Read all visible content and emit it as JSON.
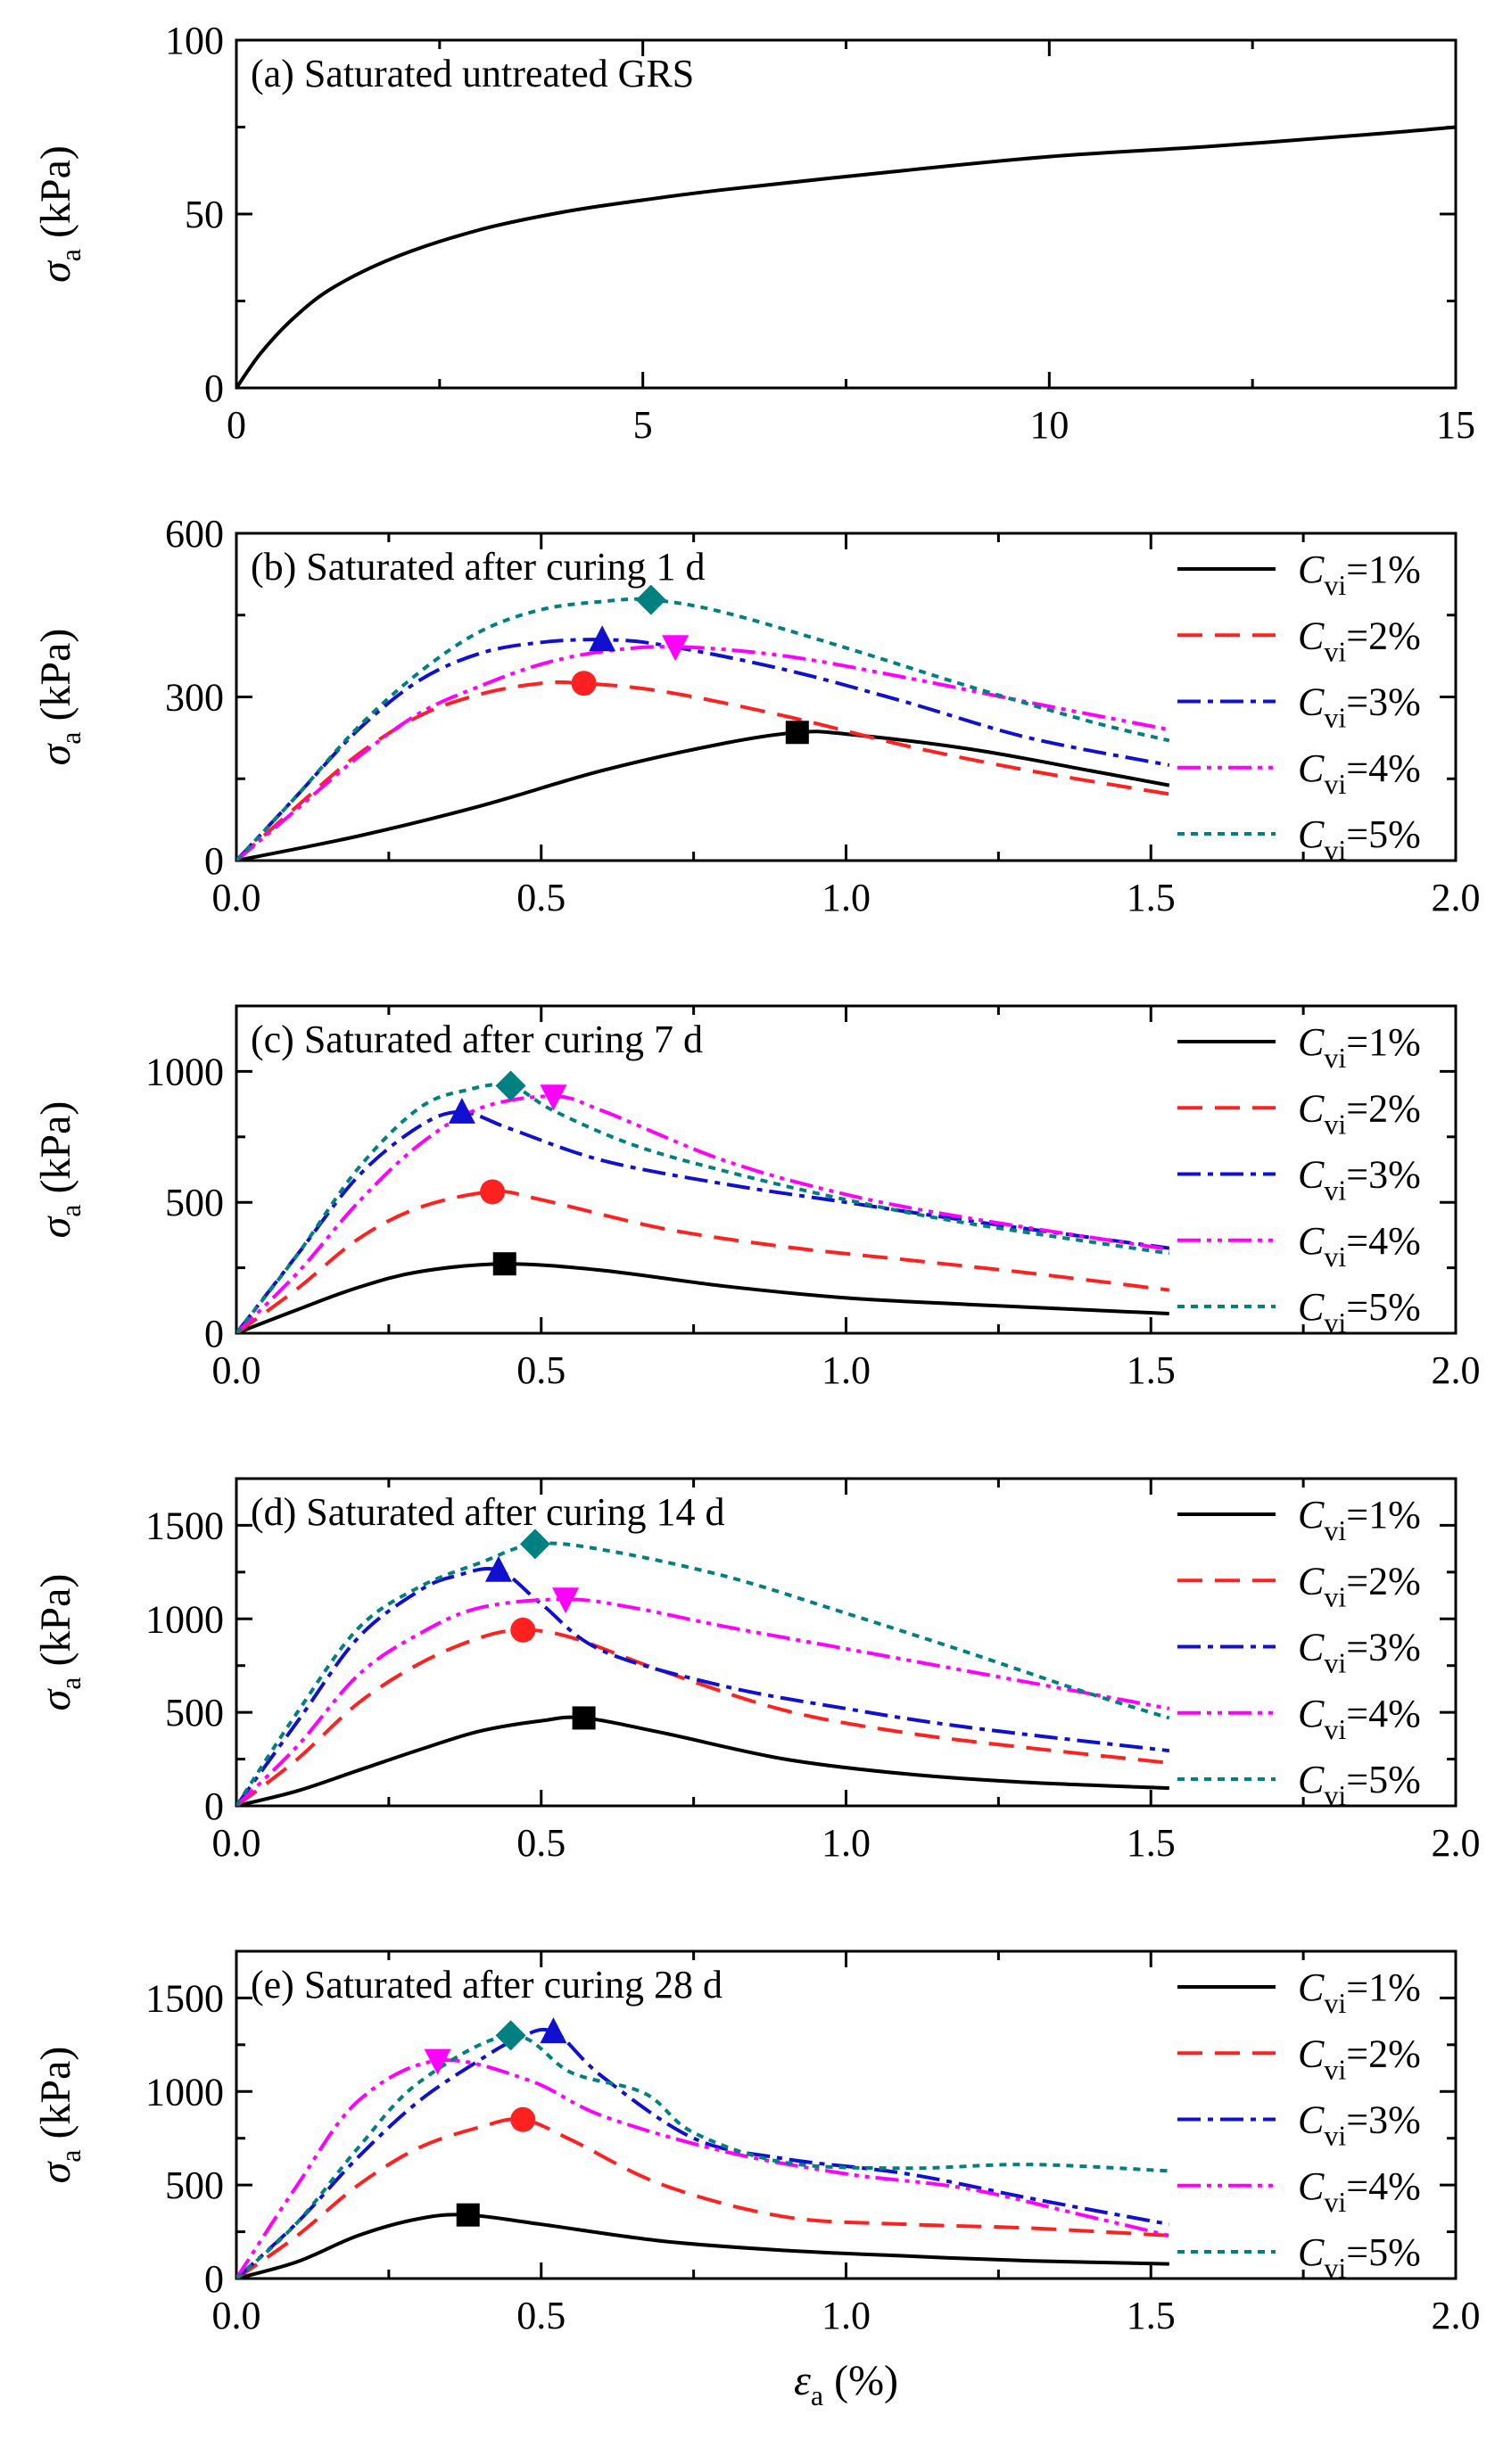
{
  "figure": {
    "xlabel_symbol": "ε",
    "xlabel_sub": "a",
    "xlabel_unit": "(%)",
    "ylabel_symbol": "σ",
    "ylabel_sub": "a",
    "ylabel_unit": "(kPa)",
    "legend_symbol": "C",
    "legend_sub": "vi"
  },
  "series_styles": [
    {
      "name": "Cvi=1%",
      "color": "#000000",
      "dash": "",
      "marker": "square"
    },
    {
      "name": "Cvi=2%",
      "color": "#ff2020",
      "dash": "28 14",
      "marker": "circle"
    },
    {
      "name": "Cvi=3%",
      "color": "#1010d0",
      "dash": "26 8 6 8",
      "marker": "triangle-up"
    },
    {
      "name": "Cvi=4%",
      "color": "#ff00ff",
      "dash": "26 7 5 7 5 7",
      "marker": "triangle-down"
    },
    {
      "name": "Cvi=5%",
      "color": "#008080",
      "dash": "8 7",
      "marker": "diamond"
    }
  ],
  "chart_data": [
    {
      "type": "line",
      "title": "(a) Saturated untreated GRS",
      "xlabel": "εa (%)",
      "ylabel": "σa (kPa)",
      "xlim": [
        0,
        15
      ],
      "ylim": [
        0,
        100
      ],
      "xticks": [
        0,
        5,
        10,
        15
      ],
      "yticks": [
        0,
        50,
        100
      ],
      "xtick_labels": [
        "0",
        "5",
        "10",
        "15"
      ],
      "ytick_labels": [
        "0",
        "50",
        "100"
      ],
      "series": [
        {
          "name": "untreated",
          "style": 0,
          "marker": false,
          "x": [
            0,
            0.3,
            0.7,
            1.2,
            2.0,
            3.0,
            4.0,
            5.0,
            6.0,
            8.0,
            10.0,
            12.0,
            14.0,
            15.0
          ],
          "y": [
            0,
            10,
            20,
            29,
            38,
            45.5,
            50.5,
            54,
            57,
            62,
            66.5,
            69.5,
            73,
            75
          ]
        }
      ]
    },
    {
      "type": "line",
      "title": "(b) Saturated after curing 1 d",
      "xlabel": "εa (%)",
      "ylabel": "σa (kPa)",
      "xlim": [
        0,
        2.0
      ],
      "ylim": [
        0,
        600
      ],
      "xticks": [
        0.0,
        0.5,
        1.0,
        1.5,
        2.0
      ],
      "yticks": [
        0,
        300,
        600
      ],
      "xtick_labels": [
        "0.0",
        "0.5",
        "1.0",
        "1.5",
        "2.0"
      ],
      "ytick_labels": [
        "0",
        "300",
        "600"
      ],
      "legend": [
        "1%",
        "2%",
        "3%",
        "4%",
        "5%"
      ],
      "series": [
        {
          "name": "Cvi=1%",
          "style": 0,
          "peak": [
            0.92,
            235
          ],
          "x": [
            0,
            0.2,
            0.4,
            0.6,
            0.8,
            0.92,
            1.0,
            1.2,
            1.4,
            1.53
          ],
          "y": [
            0,
            45,
            100,
            165,
            215,
            235,
            232,
            205,
            165,
            138
          ]
        },
        {
          "name": "Cvi=2%",
          "style": 1,
          "peak": [
            0.57,
            325
          ],
          "x": [
            0,
            0.1,
            0.2,
            0.3,
            0.4,
            0.5,
            0.57,
            0.7,
            0.9,
            1.1,
            1.3,
            1.53
          ],
          "y": [
            0,
            100,
            195,
            265,
            305,
            325,
            325,
            310,
            265,
            210,
            165,
            122
          ]
        },
        {
          "name": "Cvi=3%",
          "style": 2,
          "peak": [
            0.6,
            405
          ],
          "x": [
            0,
            0.1,
            0.2,
            0.3,
            0.4,
            0.5,
            0.6,
            0.7,
            0.9,
            1.1,
            1.3,
            1.53
          ],
          "y": [
            0,
            120,
            240,
            330,
            380,
            400,
            405,
            395,
            350,
            290,
            225,
            175
          ]
        },
        {
          "name": "Cvi=4%",
          "style": 3,
          "peak": [
            0.72,
            392
          ],
          "x": [
            0,
            0.1,
            0.2,
            0.3,
            0.4,
            0.5,
            0.6,
            0.72,
            0.9,
            1.1,
            1.3,
            1.53
          ],
          "y": [
            0,
            95,
            190,
            270,
            320,
            360,
            383,
            392,
            375,
            335,
            290,
            240
          ]
        },
        {
          "name": "Cvi=5%",
          "style": 4,
          "peak": [
            0.68,
            478
          ],
          "x": [
            0,
            0.1,
            0.2,
            0.3,
            0.4,
            0.5,
            0.6,
            0.68,
            0.8,
            1.0,
            1.2,
            1.4,
            1.53
          ],
          "y": [
            0,
            120,
            245,
            345,
            420,
            460,
            475,
            478,
            455,
            390,
            320,
            255,
            220
          ]
        }
      ]
    },
    {
      "type": "line",
      "title": "(c) Saturated after curing 7 d",
      "xlabel": "εa (%)",
      "ylabel": "σa (kPa)",
      "xlim": [
        0,
        2.0
      ],
      "ylim": [
        0,
        1250
      ],
      "xticks": [
        0.0,
        0.5,
        1.0,
        1.5,
        2.0
      ],
      "yticks": [
        0,
        500,
        1000
      ],
      "xtick_labels": [
        "0.0",
        "0.5",
        "1.0",
        "1.5",
        "2.0"
      ],
      "ytick_labels": [
        "0",
        "500",
        "1000"
      ],
      "legend": [
        "1%",
        "2%",
        "3%",
        "4%",
        "5%"
      ],
      "series": [
        {
          "name": "Cvi=1%",
          "style": 0,
          "peak": [
            0.44,
            265
          ],
          "x": [
            0,
            0.1,
            0.2,
            0.3,
            0.44,
            0.6,
            0.8,
            1.0,
            1.2,
            1.53
          ],
          "y": [
            0,
            90,
            175,
            235,
            265,
            240,
            180,
            135,
            110,
            75
          ]
        },
        {
          "name": "Cvi=2%",
          "style": 1,
          "peak": [
            0.42,
            540
          ],
          "x": [
            0,
            0.1,
            0.2,
            0.3,
            0.42,
            0.5,
            0.7,
            0.9,
            1.1,
            1.3,
            1.53
          ],
          "y": [
            0,
            170,
            360,
            480,
            540,
            510,
            400,
            330,
            280,
            230,
            165
          ]
        },
        {
          "name": "Cvi=3%",
          "style": 2,
          "peak": [
            0.37,
            845
          ],
          "x": [
            0,
            0.1,
            0.2,
            0.3,
            0.37,
            0.45,
            0.6,
            0.8,
            1.0,
            1.2,
            1.53
          ],
          "y": [
            0,
            300,
            600,
            790,
            845,
            780,
            660,
            570,
            500,
            430,
            325
          ]
        },
        {
          "name": "Cvi=4%",
          "style": 3,
          "peak": [
            0.52,
            905
          ],
          "x": [
            0,
            0.1,
            0.2,
            0.3,
            0.4,
            0.52,
            0.6,
            0.8,
            1.0,
            1.2,
            1.53
          ],
          "y": [
            0,
            230,
            500,
            720,
            860,
            905,
            850,
            660,
            530,
            440,
            320
          ]
        },
        {
          "name": "Cvi=5%",
          "style": 4,
          "peak": [
            0.45,
            945
          ],
          "x": [
            0,
            0.1,
            0.2,
            0.3,
            0.38,
            0.45,
            0.52,
            0.65,
            0.8,
            1.0,
            1.2,
            1.53
          ],
          "y": [
            0,
            300,
            630,
            860,
            930,
            945,
            850,
            720,
            620,
            510,
            420,
            305
          ]
        }
      ]
    },
    {
      "type": "line",
      "title": "(d) Saturated after curing 14 d",
      "xlabel": "εa (%)",
      "ylabel": "σa (kPa)",
      "xlim": [
        0,
        2.0
      ],
      "ylim": [
        0,
        1750
      ],
      "xticks": [
        0.0,
        0.5,
        1.0,
        1.5,
        2.0
      ],
      "yticks": [
        0,
        500,
        1000,
        1500
      ],
      "xtick_labels": [
        "0.0",
        "0.5",
        "1.0",
        "1.5",
        "2.0"
      ],
      "ytick_labels": [
        "0",
        "500",
        "1000",
        "1500"
      ],
      "legend": [
        "1%",
        "2%",
        "3%",
        "4%",
        "5%"
      ],
      "series": [
        {
          "name": "Cvi=1%",
          "style": 0,
          "peak": [
            0.57,
            470
          ],
          "x": [
            0,
            0.1,
            0.2,
            0.3,
            0.4,
            0.5,
            0.57,
            0.7,
            0.9,
            1.1,
            1.3,
            1.53
          ],
          "y": [
            0,
            80,
            190,
            300,
            400,
            455,
            470,
            390,
            250,
            170,
            125,
            95
          ]
        },
        {
          "name": "Cvi=2%",
          "style": 1,
          "peak": [
            0.47,
            940
          ],
          "x": [
            0,
            0.1,
            0.2,
            0.3,
            0.4,
            0.47,
            0.55,
            0.7,
            0.9,
            1.1,
            1.3,
            1.53
          ],
          "y": [
            0,
            250,
            550,
            760,
            900,
            940,
            900,
            720,
            510,
            390,
            310,
            230
          ]
        },
        {
          "name": "Cvi=3%",
          "style": 2,
          "peak": [
            0.43,
            1260
          ],
          "x": [
            0,
            0.1,
            0.2,
            0.3,
            0.36,
            0.43,
            0.5,
            0.6,
            0.8,
            1.0,
            1.2,
            1.53
          ],
          "y": [
            0,
            450,
            900,
            1150,
            1230,
            1260,
            1080,
            830,
            640,
            520,
            420,
            295
          ]
        },
        {
          "name": "Cvi=4%",
          "style": 3,
          "peak": [
            0.54,
            1105
          ],
          "x": [
            0,
            0.1,
            0.2,
            0.3,
            0.4,
            0.54,
            0.65,
            0.8,
            1.0,
            1.2,
            1.4,
            1.53
          ],
          "y": [
            0,
            320,
            700,
            920,
            1060,
            1105,
            1060,
            960,
            840,
            720,
            600,
            520
          ]
        },
        {
          "name": "Cvi=5%",
          "style": 4,
          "peak": [
            0.49,
            1400
          ],
          "x": [
            0,
            0.1,
            0.2,
            0.3,
            0.4,
            0.49,
            0.6,
            0.8,
            1.0,
            1.2,
            1.4,
            1.53
          ],
          "y": [
            0,
            500,
            950,
            1170,
            1300,
            1400,
            1370,
            1230,
            1030,
            820,
            600,
            470
          ]
        }
      ]
    },
    {
      "type": "line",
      "title": "(e) Saturated after curing 28 d",
      "xlabel": "εa (%)",
      "ylabel": "σa (kPa)",
      "xlim": [
        0,
        2.0
      ],
      "ylim": [
        0,
        1750
      ],
      "xticks": [
        0.0,
        0.5,
        1.0,
        1.5,
        2.0
      ],
      "yticks": [
        0,
        500,
        1000,
        1500
      ],
      "xtick_labels": [
        "0.0",
        "0.5",
        "1.0",
        "1.5",
        "2.0"
      ],
      "ytick_labels": [
        "0",
        "500",
        "1000",
        "1500"
      ],
      "legend": [
        "1%",
        "2%",
        "3%",
        "4%",
        "5%"
      ],
      "series": [
        {
          "name": "Cvi=1%",
          "style": 0,
          "peak": [
            0.38,
            340
          ],
          "x": [
            0,
            0.1,
            0.2,
            0.3,
            0.38,
            0.5,
            0.7,
            0.9,
            1.1,
            1.3,
            1.53
          ],
          "y": [
            0,
            90,
            230,
            320,
            340,
            290,
            200,
            150,
            120,
            95,
            78
          ]
        },
        {
          "name": "Cvi=2%",
          "style": 1,
          "peak": [
            0.47,
            850
          ],
          "x": [
            0,
            0.1,
            0.2,
            0.3,
            0.4,
            0.47,
            0.55,
            0.7,
            0.9,
            1.1,
            1.3,
            1.53
          ],
          "y": [
            0,
            230,
            500,
            700,
            810,
            850,
            740,
            500,
            330,
            290,
            270,
            230
          ]
        },
        {
          "name": "Cvi=3%",
          "style": 2,
          "peak": [
            0.52,
            1320
          ],
          "x": [
            0,
            0.1,
            0.2,
            0.3,
            0.4,
            0.46,
            0.52,
            0.6,
            0.75,
            0.9,
            1.1,
            1.3,
            1.53
          ],
          "y": [
            0,
            300,
            650,
            950,
            1170,
            1280,
            1320,
            1080,
            750,
            640,
            560,
            430,
            290
          ]
        },
        {
          "name": "Cvi=4%",
          "style": 3,
          "peak": [
            0.33,
            1165
          ],
          "x": [
            0,
            0.1,
            0.2,
            0.33,
            0.48,
            0.6,
            0.8,
            1.0,
            1.2,
            1.4,
            1.53
          ],
          "y": [
            0,
            500,
            950,
            1165,
            1060,
            870,
            680,
            560,
            480,
            330,
            230
          ]
        },
        {
          "name": "Cvi=5%",
          "style": 4,
          "peak": [
            0.45,
            1300
          ],
          "x": [
            0,
            0.1,
            0.2,
            0.3,
            0.45,
            0.55,
            0.67,
            0.75,
            0.9,
            1.1,
            1.3,
            1.53
          ],
          "y": [
            0,
            300,
            700,
            1050,
            1300,
            1100,
            990,
            780,
            620,
            590,
            610,
            575
          ]
        }
      ]
    }
  ]
}
